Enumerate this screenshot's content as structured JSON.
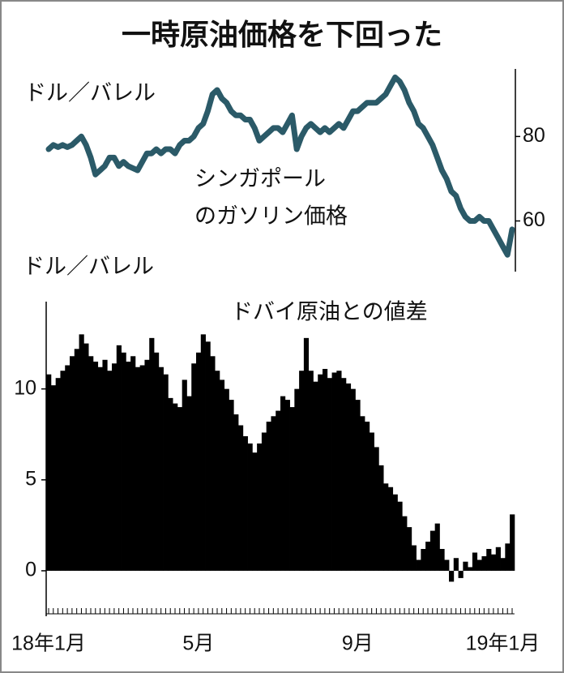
{
  "chart_data": [
    {
      "type": "line",
      "title": "一時原油価格を下回った",
      "y_label": "ドル／バレル",
      "annotation": [
        "シンガポール",
        "のガソリン価格"
      ],
      "color": "#2b5a68",
      "yaxis_position": "right",
      "ylim": [
        48,
        96
      ],
      "yticks": [
        60,
        80
      ],
      "values": [
        77,
        78,
        77.5,
        78,
        77.5,
        78,
        79,
        80,
        78,
        75,
        71,
        72,
        73,
        75,
        75,
        73,
        74,
        73,
        72.5,
        72,
        74,
        76,
        76,
        77,
        76,
        77,
        77,
        76,
        78,
        79,
        79,
        80,
        82,
        83,
        86,
        90,
        91,
        89,
        88,
        86,
        85,
        85,
        84,
        84,
        82,
        79,
        80,
        81,
        82,
        82,
        81,
        83,
        85,
        77,
        80,
        82,
        83,
        82,
        81,
        82,
        81,
        82,
        83,
        82,
        84,
        86,
        86,
        87,
        88,
        88,
        88,
        89,
        90,
        92,
        94,
        93,
        91,
        88,
        86,
        83,
        82,
        80,
        78,
        75,
        72,
        70,
        67,
        66,
        63,
        61,
        60,
        60,
        61,
        60,
        60,
        58,
        56,
        54,
        52,
        58
      ]
    },
    {
      "type": "bar",
      "y_label": "ドル／バレル",
      "annotation": "ドバイ原油との値差",
      "color": "#000000",
      "yaxis_position": "left",
      "ylim": [
        -2.5,
        14.8
      ],
      "yticks": [
        0,
        5,
        10
      ],
      "categories": [
        "18年1月",
        null,
        null,
        null,
        null,
        null,
        null,
        null,
        null,
        null,
        null,
        null,
        null,
        null,
        null,
        null,
        null,
        null,
        null,
        null,
        null,
        null,
        null,
        null,
        null,
        null,
        null,
        null,
        null,
        null,
        null,
        null,
        "5月",
        null,
        null,
        null,
        null,
        null,
        null,
        null,
        null,
        null,
        null,
        null,
        null,
        null,
        null,
        null,
        null,
        null,
        null,
        null,
        null,
        null,
        null,
        null,
        null,
        null,
        null,
        null,
        null,
        null,
        null,
        null,
        null,
        null,
        "9月",
        null,
        null,
        null,
        null,
        null,
        null,
        null,
        null,
        null,
        null,
        null,
        null,
        null,
        null,
        null,
        null,
        null,
        null,
        null,
        null,
        null,
        null,
        null,
        null,
        null,
        null,
        null,
        null,
        null,
        null,
        "19年1月",
        null,
        null
      ],
      "values": [
        10.8,
        10.2,
        10.6,
        11,
        11.3,
        11.8,
        12.2,
        13,
        12.5,
        11.8,
        11.5,
        11.2,
        11.6,
        11,
        11.4,
        12.4,
        12,
        11.5,
        11.8,
        11.2,
        11.3,
        11.6,
        12.8,
        12,
        11.2,
        10.8,
        9.5,
        9.2,
        9,
        10.5,
        9.6,
        11.4,
        12,
        13,
        12.6,
        11.8,
        11,
        10.5,
        10,
        9.4,
        8.6,
        8,
        7.4,
        7,
        6.5,
        7,
        7.6,
        8.2,
        8.5,
        8.8,
        9.6,
        9.4,
        9,
        10,
        11,
        12.8,
        11,
        10.4,
        10.8,
        11.1,
        10.6,
        10.9,
        11,
        10.6,
        10.3,
        10,
        9.4,
        8.5,
        8.2,
        7.6,
        6.8,
        5.8,
        4.8,
        4.6,
        4.2,
        3.8,
        3,
        2.4,
        1.4,
        0.6,
        1.2,
        1.6,
        2.2,
        2.6,
        1.2,
        0.6,
        -0.6,
        0.7,
        -0.4,
        0.5,
        0.2,
        1,
        0.6,
        0.8,
        1.2,
        0.9,
        1.3,
        0.7,
        1.5,
        3.1
      ]
    }
  ]
}
